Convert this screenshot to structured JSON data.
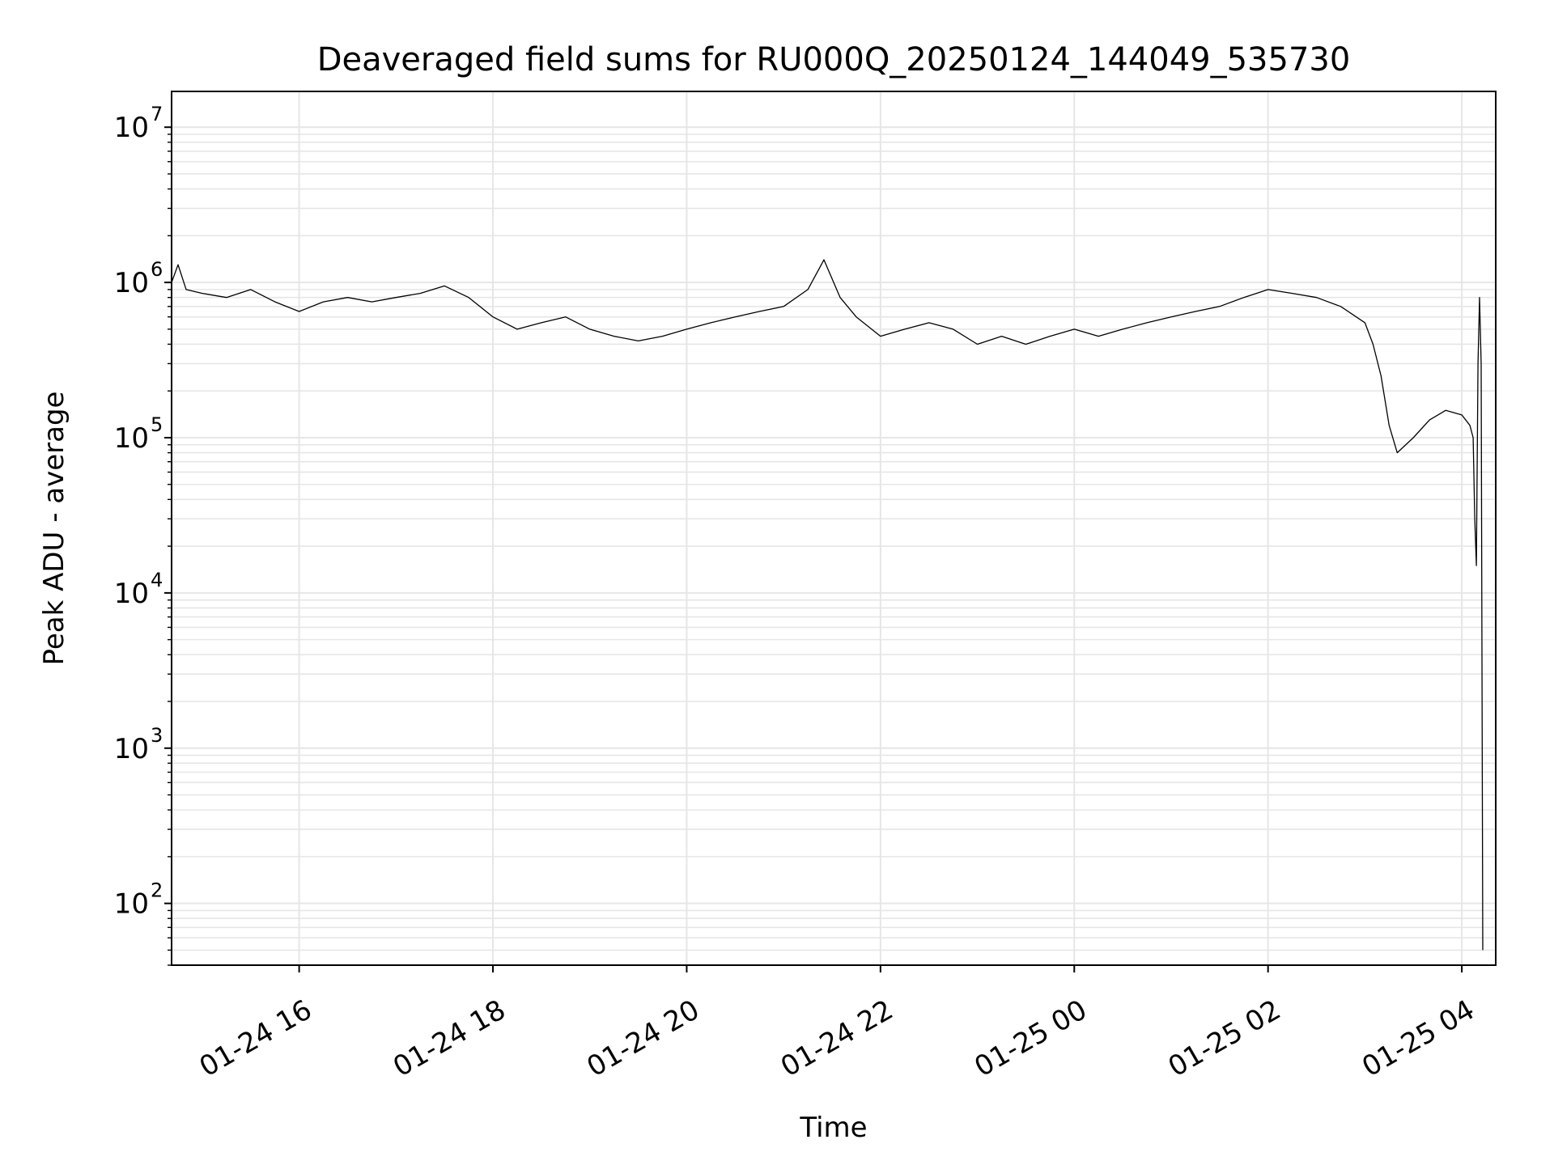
{
  "chart_data": {
    "type": "line",
    "title": "Deaveraged field sums for RU000Q_20250124_144049_535730",
    "xlabel": "Time",
    "ylabel": "Peak ADU - average",
    "y_scale": "log",
    "ylim": [
      40,
      17000000
    ],
    "xlim": [
      "2025-01-24 14:41",
      "2025-01-25 04:21"
    ],
    "grid": true,
    "legend": false,
    "line_color": "#000000",
    "grid_color": "#e6e6e6",
    "x_ticks": [
      {
        "value": "2025-01-24 16:00",
        "label": "01-24 16"
      },
      {
        "value": "2025-01-24 18:00",
        "label": "01-24 18"
      },
      {
        "value": "2025-01-24 20:00",
        "label": "01-24 20"
      },
      {
        "value": "2025-01-24 22:00",
        "label": "01-24 22"
      },
      {
        "value": "2025-01-25 00:00",
        "label": "01-25 00"
      },
      {
        "value": "2025-01-25 02:00",
        "label": "01-25 02"
      },
      {
        "value": "2025-01-25 04:00",
        "label": "01-25 04"
      }
    ],
    "y_ticks": [
      {
        "value": 100,
        "label": "10",
        "exp": "2"
      },
      {
        "value": 1000,
        "label": "10",
        "exp": "3"
      },
      {
        "value": 10000,
        "label": "10",
        "exp": "4"
      },
      {
        "value": 100000,
        "label": "10",
        "exp": "5"
      },
      {
        "value": 1000000,
        "label": "10",
        "exp": "6"
      },
      {
        "value": 10000000,
        "label": "10",
        "exp": "7"
      }
    ],
    "series": [
      {
        "x": [
          "2025-01-24 14:41",
          "2025-01-24 14:45",
          "2025-01-24 14:50",
          "2025-01-24 15:00",
          "2025-01-24 15:15",
          "2025-01-24 15:30",
          "2025-01-24 15:45",
          "2025-01-24 16:00",
          "2025-01-24 16:15",
          "2025-01-24 16:30",
          "2025-01-24 16:45",
          "2025-01-24 17:00",
          "2025-01-24 17:15",
          "2025-01-24 17:30",
          "2025-01-24 17:45",
          "2025-01-24 18:00",
          "2025-01-24 18:15",
          "2025-01-24 18:30",
          "2025-01-24 18:45",
          "2025-01-24 19:00",
          "2025-01-24 19:15",
          "2025-01-24 19:30",
          "2025-01-24 19:45",
          "2025-01-24 20:00",
          "2025-01-24 20:15",
          "2025-01-24 20:30",
          "2025-01-24 20:45",
          "2025-01-24 21:00",
          "2025-01-24 21:15",
          "2025-01-24 21:25",
          "2025-01-24 21:35",
          "2025-01-24 21:45",
          "2025-01-24 22:00",
          "2025-01-24 22:15",
          "2025-01-24 22:30",
          "2025-01-24 22:45",
          "2025-01-24 23:00",
          "2025-01-24 23:15",
          "2025-01-24 23:30",
          "2025-01-24 23:45",
          "2025-01-25 00:00",
          "2025-01-25 00:15",
          "2025-01-25 00:30",
          "2025-01-25 00:45",
          "2025-01-25 01:00",
          "2025-01-25 01:15",
          "2025-01-25 01:30",
          "2025-01-25 01:45",
          "2025-01-25 02:00",
          "2025-01-25 02:15",
          "2025-01-25 02:30",
          "2025-01-25 02:45",
          "2025-01-25 03:00",
          "2025-01-25 03:05",
          "2025-01-25 03:10",
          "2025-01-25 03:15",
          "2025-01-25 03:20",
          "2025-01-25 03:30",
          "2025-01-25 03:40",
          "2025-01-25 03:50",
          "2025-01-25 04:00",
          "2025-01-25 04:05",
          "2025-01-25 04:07",
          "2025-01-25 04:08",
          "2025-01-25 04:09",
          "2025-01-25 04:10",
          "2025-01-25 04:11",
          "2025-01-25 04:12",
          "2025-01-25 04:13"
        ],
        "values": [
          1000000,
          1300000,
          900000,
          850000,
          800000,
          900000,
          750000,
          650000,
          750000,
          800000,
          750000,
          800000,
          850000,
          950000,
          800000,
          600000,
          500000,
          550000,
          600000,
          500000,
          450000,
          420000,
          450000,
          500000,
          550000,
          600000,
          650000,
          700000,
          900000,
          1400000,
          800000,
          600000,
          450000,
          500000,
          550000,
          500000,
          400000,
          450000,
          400000,
          450000,
          500000,
          450000,
          500000,
          550000,
          600000,
          650000,
          700000,
          800000,
          900000,
          850000,
          800000,
          700000,
          550000,
          400000,
          250000,
          120000,
          80000,
          100000,
          130000,
          150000,
          140000,
          120000,
          100000,
          30000,
          15000,
          300000,
          800000,
          300000,
          50
        ]
      }
    ]
  }
}
